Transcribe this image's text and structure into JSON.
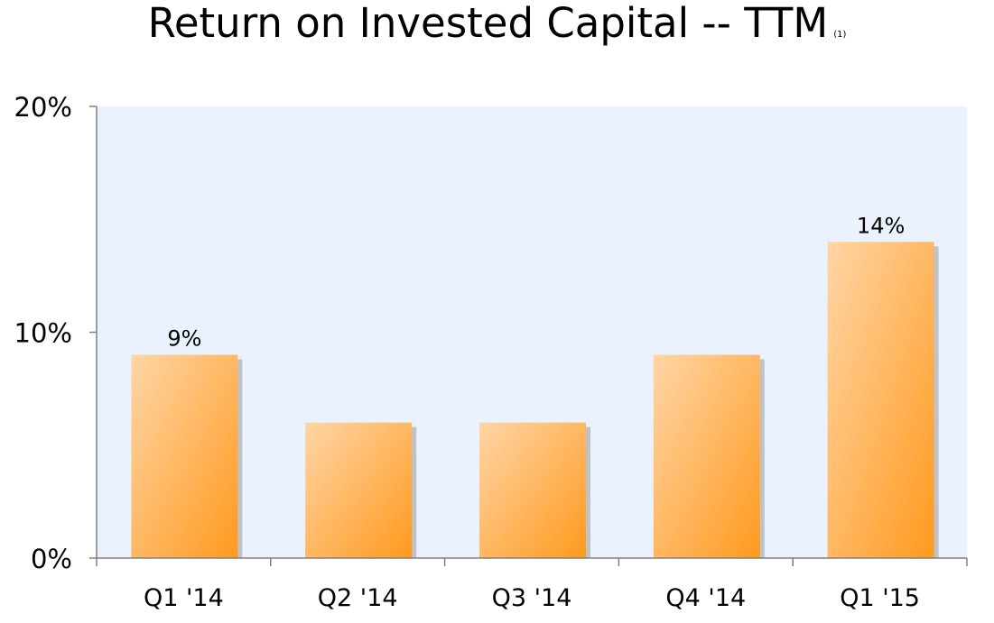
{
  "chart_data": {
    "type": "bar",
    "title": "Return on Invested Capital -- TTM",
    "title_note": "(1)",
    "categories": [
      "Q1 '14",
      "Q2 '14",
      "Q3 '14",
      "Q4 '14",
      "Q1 '15"
    ],
    "values": [
      9,
      6,
      6,
      9,
      14
    ],
    "data_labels": [
      "9%",
      "",
      "",
      "",
      "14%"
    ],
    "y_ticks": [
      0,
      10,
      20
    ],
    "y_tick_labels": [
      "0%",
      "10%",
      "20%"
    ],
    "ylim": [
      0,
      20
    ],
    "xlabel": "",
    "ylabel": "",
    "grid": false,
    "legend": "none",
    "colors": {
      "plot_background": "#EAF2FD",
      "bar_light": "#FFD5A6",
      "bar_dark": "#FF9A1E",
      "bar_shadow": "#9A9A9A",
      "axis": "#808080"
    }
  }
}
